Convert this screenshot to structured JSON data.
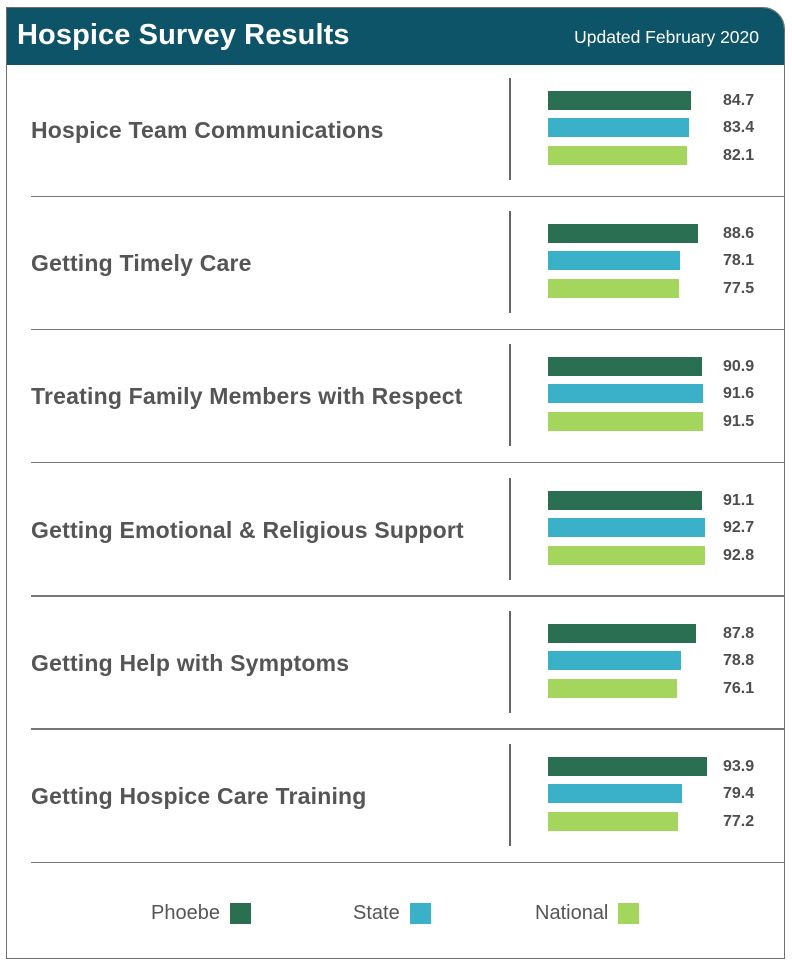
{
  "header": {
    "title": "Hospice Survey Results",
    "updated": "Updated February 2020"
  },
  "colors": {
    "header_bg": "#0d5468",
    "phoebe": "#2a6f52",
    "state": "#3ab1c8",
    "national": "#a4d65e"
  },
  "legend": [
    {
      "label": "Phoebe",
      "color": "#2a6f52"
    },
    {
      "label": "State",
      "color": "#3ab1c8"
    },
    {
      "label": "National",
      "color": "#a4d65e"
    }
  ],
  "chart_data": {
    "type": "bar",
    "orientation": "horizontal",
    "title": "Hospice Survey Results",
    "subtitle": "Updated February 2020",
    "categories": [
      "Hospice Team Communications",
      "Getting Timely Care",
      "Treating Family Members with Respect",
      "Getting Emotional & Religious Support",
      "Getting Help with Symptoms",
      "Getting Hospice Care Training"
    ],
    "series": [
      {
        "name": "Phoebe",
        "values": [
          84.7,
          88.6,
          90.9,
          91.1,
          87.8,
          93.9
        ]
      },
      {
        "name": "State",
        "values": [
          83.4,
          78.1,
          91.6,
          92.7,
          78.8,
          79.4
        ]
      },
      {
        "name": "National",
        "values": [
          82.1,
          77.5,
          91.5,
          92.8,
          76.1,
          77.2
        ]
      }
    ],
    "value_labels": [
      [
        "84.7",
        "83.4",
        "82.1"
      ],
      [
        "88.6",
        "78.1",
        "77.5"
      ],
      [
        "90.9",
        "91.6",
        "91.5"
      ],
      [
        "91.1",
        "92.7",
        "92.8"
      ],
      [
        "87.8",
        "78.8",
        "76.1"
      ],
      [
        "93.9",
        "79.4",
        "77.2"
      ]
    ],
    "legend_position": "bottom",
    "grid": false
  }
}
